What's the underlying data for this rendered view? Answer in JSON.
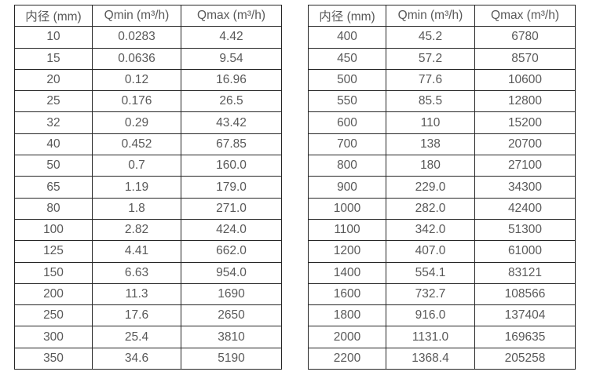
{
  "colors": {
    "background": "#ffffff",
    "border": "#262626",
    "text": "#595959"
  },
  "tables": [
    {
      "name": "small-diameter-flow-table",
      "headers": [
        "内径 (mm)",
        "Qmin (m³/h)",
        "Qmax (m³/h)"
      ],
      "rows": [
        [
          "10",
          "0.0283",
          "4.42"
        ],
        [
          "15",
          "0.0636",
          "9.54"
        ],
        [
          "20",
          "0.12",
          "16.96"
        ],
        [
          "25",
          "0.176",
          "26.5"
        ],
        [
          "32",
          "0.29",
          "43.42"
        ],
        [
          "40",
          "0.452",
          "67.85"
        ],
        [
          "50",
          "0.7",
          "160.0"
        ],
        [
          "65",
          "1.19",
          "179.0"
        ],
        [
          "80",
          "1.8",
          "271.0"
        ],
        [
          "100",
          "2.82",
          "424.0"
        ],
        [
          "125",
          "4.41",
          "662.0"
        ],
        [
          "150",
          "6.63",
          "954.0"
        ],
        [
          "200",
          "11.3",
          "1690"
        ],
        [
          "250",
          "17.6",
          "2650"
        ],
        [
          "300",
          "25.4",
          "3810"
        ],
        [
          "350",
          "34.6",
          "5190"
        ]
      ]
    },
    {
      "name": "large-diameter-flow-table",
      "headers": [
        "内径 (mm)",
        "Qmin (m³/h)",
        "Qmax (m³/h)"
      ],
      "rows": [
        [
          "400",
          "45.2",
          "6780"
        ],
        [
          "450",
          "57.2",
          "8570"
        ],
        [
          "500",
          "77.6",
          "10600"
        ],
        [
          "550",
          "85.5",
          "12800"
        ],
        [
          "600",
          "110",
          "15200"
        ],
        [
          "700",
          "138",
          "20700"
        ],
        [
          "800",
          "180",
          "27100"
        ],
        [
          "900",
          "229.0",
          "34300"
        ],
        [
          "1000",
          "282.0",
          "42400"
        ],
        [
          "1100",
          "342.0",
          "51300"
        ],
        [
          "1200",
          "407.0",
          "61000"
        ],
        [
          "1400",
          "554.1",
          "83121"
        ],
        [
          "1600",
          "732.7",
          "108566"
        ],
        [
          "1800",
          "916.0",
          "137404"
        ],
        [
          "2000",
          "1131.0",
          "169635"
        ],
        [
          "2200",
          "1368.4",
          "205258"
        ]
      ]
    }
  ]
}
